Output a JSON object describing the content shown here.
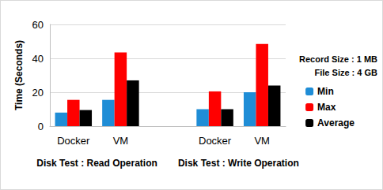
{
  "chart_data": {
    "type": "bar",
    "y_label": "Time (Seconds)",
    "categories": [
      "Docker",
      "VM",
      null,
      "Docker",
      "VM"
    ],
    "group_labels": [
      "Disk Test : Read Operation",
      "Disk Test : Write Operation"
    ],
    "annotations": [
      "Record Size : 1 MB",
      "File Size : 4 GB"
    ],
    "series": [
      {
        "name": "Min",
        "color": "#1f8dd6",
        "values": [
          8,
          15.5,
          null,
          10,
          20
        ]
      },
      {
        "name": "Max",
        "color": "#ff0000",
        "values": [
          15.5,
          43.5,
          null,
          20.5,
          48.5
        ]
      },
      {
        "name": "Average",
        "color": "#000000",
        "values": [
          9.5,
          27,
          null,
          10,
          24
        ]
      }
    ],
    "ylim": [
      0,
      60
    ],
    "yticks": [
      0,
      20,
      40,
      60
    ],
    "grid": true,
    "legend": "right"
  }
}
